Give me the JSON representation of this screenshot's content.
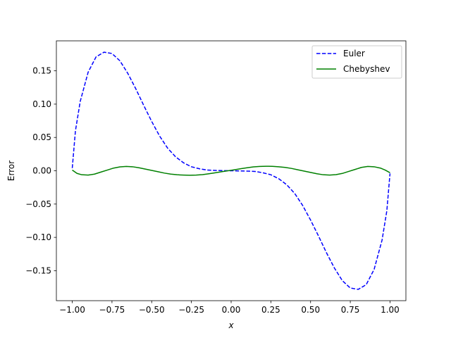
{
  "chart_data": {
    "type": "line",
    "title": "",
    "xlabel": "x",
    "ylabel": "Error",
    "xlim": [
      -1.1,
      1.1
    ],
    "ylim": [
      -0.195,
      0.195
    ],
    "xticks": [
      -1.0,
      -0.75,
      -0.5,
      -0.25,
      0.0,
      0.25,
      0.5,
      0.75,
      1.0
    ],
    "xtick_labels": [
      "−1.00",
      "−0.75",
      "−0.50",
      "−0.25",
      "0.00",
      "0.25",
      "0.50",
      "0.75",
      "1.00"
    ],
    "yticks": [
      -0.15,
      -0.1,
      -0.05,
      0.0,
      0.05,
      0.1,
      0.15
    ],
    "ytick_labels": [
      "−0.15",
      "−0.10",
      "−0.05",
      "0.00",
      "0.05",
      "0.10",
      "0.15"
    ],
    "grid": false,
    "legend_position": "top-right",
    "series": [
      {
        "name": "Euler",
        "color": "#0000ff",
        "dashed": true,
        "x": [
          -1.0,
          -0.98,
          -0.95,
          -0.9,
          -0.85,
          -0.8,
          -0.75,
          -0.7,
          -0.65,
          -0.6,
          -0.55,
          -0.5,
          -0.45,
          -0.4,
          -0.35,
          -0.3,
          -0.25,
          -0.2,
          -0.15,
          -0.1,
          -0.05,
          0.0,
          0.05,
          0.1,
          0.15,
          0.2,
          0.25,
          0.3,
          0.35,
          0.4,
          0.45,
          0.5,
          0.55,
          0.6,
          0.65,
          0.7,
          0.75,
          0.8,
          0.85,
          0.9,
          0.95,
          0.98,
          1.0
        ],
        "y": [
          0.004,
          0.06,
          0.104,
          0.148,
          0.171,
          0.178,
          0.176,
          0.165,
          0.146,
          0.123,
          0.098,
          0.074,
          0.052,
          0.034,
          0.021,
          0.012,
          0.006,
          0.003,
          0.001,
          0.0005,
          0.0002,
          0.0,
          -0.0002,
          -0.0005,
          -0.001,
          -0.003,
          -0.006,
          -0.012,
          -0.021,
          -0.034,
          -0.052,
          -0.074,
          -0.098,
          -0.123,
          -0.146,
          -0.165,
          -0.176,
          -0.178,
          -0.171,
          -0.148,
          -0.104,
          -0.06,
          -0.004
        ]
      },
      {
        "name": "Chebyshev",
        "color": "#008000",
        "dashed": false,
        "x": [
          -1.0,
          -0.97,
          -0.94,
          -0.9,
          -0.86,
          -0.82,
          -0.78,
          -0.74,
          -0.7,
          -0.66,
          -0.62,
          -0.58,
          -0.54,
          -0.5,
          -0.46,
          -0.42,
          -0.38,
          -0.34,
          -0.3,
          -0.26,
          -0.22,
          -0.18,
          -0.14,
          -0.1,
          -0.06,
          -0.02,
          0.02,
          0.06,
          0.1,
          0.14,
          0.18,
          0.22,
          0.26,
          0.3,
          0.34,
          0.38,
          0.42,
          0.46,
          0.5,
          0.54,
          0.58,
          0.62,
          0.66,
          0.7,
          0.74,
          0.78,
          0.82,
          0.86,
          0.9,
          0.94,
          0.97,
          1.0
        ],
        "y": [
          0.001,
          -0.004,
          -0.006,
          -0.0065,
          -0.005,
          -0.002,
          0.001,
          0.004,
          0.0058,
          0.0065,
          0.006,
          0.0045,
          0.0025,
          0.0005,
          -0.0015,
          -0.0035,
          -0.005,
          -0.006,
          -0.0065,
          -0.0068,
          -0.0065,
          -0.0058,
          -0.0045,
          -0.003,
          -0.0015,
          0.0,
          0.0015,
          0.003,
          0.0045,
          0.0058,
          0.0065,
          0.0068,
          0.0066,
          0.006,
          0.005,
          0.0035,
          0.0015,
          -0.0005,
          -0.0025,
          -0.0045,
          -0.006,
          -0.0065,
          -0.0058,
          -0.004,
          -0.001,
          0.002,
          0.005,
          0.0065,
          0.006,
          0.004,
          0.001,
          -0.003
        ]
      }
    ]
  }
}
